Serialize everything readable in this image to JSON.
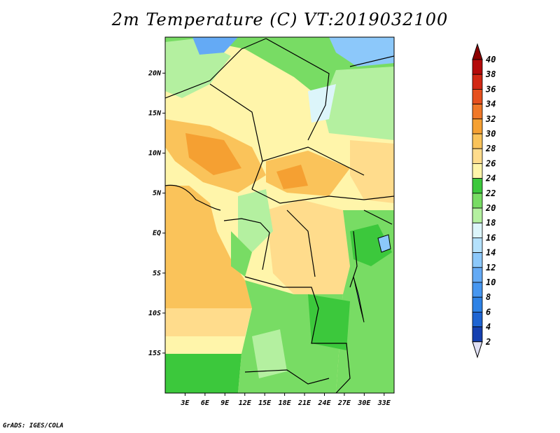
{
  "title": "2m Temperature (C) VT:2019032100",
  "credit": "GrADS: IGES/COLA",
  "map": {
    "lon_range": [
      0,
      34.5
    ],
    "lat_range": [
      -20,
      24.5
    ],
    "lat_ticks": [
      {
        "value": 20,
        "label": "20N"
      },
      {
        "value": 15,
        "label": "15N"
      },
      {
        "value": 10,
        "label": "10N"
      },
      {
        "value": 5,
        "label": "5N"
      },
      {
        "value": 0,
        "label": "EQ"
      },
      {
        "value": -5,
        "label": "5S"
      },
      {
        "value": -10,
        "label": "10S"
      },
      {
        "value": -15,
        "label": "15S"
      }
    ],
    "lon_ticks": [
      {
        "value": 3,
        "label": "3E"
      },
      {
        "value": 6,
        "label": "6E"
      },
      {
        "value": 9,
        "label": "9E"
      },
      {
        "value": 12,
        "label": "12E"
      },
      {
        "value": 15,
        "label": "15E"
      },
      {
        "value": 18,
        "label": "18E"
      },
      {
        "value": 21,
        "label": "21E"
      },
      {
        "value": 24,
        "label": "24E"
      },
      {
        "value": 27,
        "label": "27E"
      },
      {
        "value": 30,
        "label": "30E"
      },
      {
        "value": 33,
        "label": "33E"
      }
    ]
  },
  "colorbar": {
    "levels": [
      "2",
      "4",
      "6",
      "8",
      "10",
      "12",
      "14",
      "16",
      "18",
      "20",
      "22",
      "24",
      "26",
      "28",
      "30",
      "32",
      "34",
      "36",
      "38",
      "40"
    ],
    "colors": [
      "#0a0a8c",
      "#1540b0",
      "#1e64d2",
      "#2d82e6",
      "#4696f0",
      "#64aaf5",
      "#8cc8fa",
      "#b4e1fc",
      "#dcf5fa",
      "#b4f0a0",
      "#78dc64",
      "#3cc83c",
      "#fff5aa",
      "#ffdc8c",
      "#fac35a",
      "#f5a032",
      "#f07828",
      "#e6501e",
      "#d22814",
      "#b40a0a",
      "#8c0000"
    ],
    "low_end_color": "#e0e0f4"
  }
}
